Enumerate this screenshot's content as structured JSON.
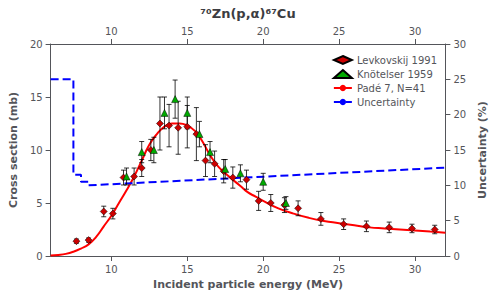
{
  "chart_data": {
    "type": "scatter",
    "title": "⁷⁰Zn(p,α)⁶⁷Cu",
    "x_label": "Incident particle energy (MeV)",
    "y_label": "Cross section (mb)",
    "y2_label": "Uncertainty (%)",
    "xlim": [
      6,
      32
    ],
    "xticks": [
      10,
      15,
      20,
      25,
      30
    ],
    "ylim": [
      0,
      20
    ],
    "yticks": [
      0,
      5,
      10,
      15,
      20
    ],
    "y2lim": [
      0,
      30
    ],
    "y2ticks": [
      0,
      5,
      10,
      15,
      20,
      25,
      30
    ],
    "grid": false,
    "legend": "upper right",
    "series": [
      {
        "name": "Levkovskij 1991",
        "type": "scatter",
        "marker": "diamond",
        "color": "#cc0000",
        "x": [
          7.7,
          8.5,
          9.5,
          10.1,
          10.8,
          11.5,
          12.0,
          12.6,
          13.2,
          13.8,
          14.4,
          15.0,
          15.6,
          16.2,
          16.8,
          17.4,
          18.0,
          18.9,
          19.7,
          20.5,
          21.4,
          22.3,
          23.8,
          25.3,
          26.8,
          28.3,
          29.8,
          31.3
        ],
        "values": [
          1.4,
          1.5,
          4.2,
          4.0,
          7.4,
          7.5,
          8.3,
          10.0,
          12.5,
          12.3,
          12.1,
          12.2,
          11.5,
          9.0,
          8.7,
          8.0,
          7.4,
          7.2,
          5.2,
          5.0,
          4.8,
          4.5,
          3.5,
          3.0,
          2.8,
          2.7,
          2.6,
          2.5
        ],
        "errors": [
          0.2,
          0.2,
          0.5,
          0.5,
          0.7,
          0.8,
          0.8,
          1.0,
          2.5,
          2.0,
          2.5,
          2.0,
          2.5,
          1.5,
          1.2,
          1.1,
          1.0,
          0.9,
          0.9,
          0.8,
          0.7,
          0.7,
          0.6,
          0.5,
          0.5,
          0.5,
          0.4,
          0.4
        ]
      },
      {
        "name": "Knötelser 1959",
        "type": "scatter",
        "marker": "triangle",
        "color": "#00aa00",
        "x": [
          11.0,
          12.0,
          12.8,
          13.5,
          14.2,
          15.0,
          15.8,
          16.5,
          17.5,
          18.5,
          20.0,
          21.5
        ],
        "values": [
          7.5,
          9.8,
          10.0,
          13.5,
          14.8,
          13.5,
          11.5,
          9.8,
          8.2,
          7.8,
          7.0,
          5.0
        ],
        "errors": [
          0.8,
          1.0,
          1.2,
          1.5,
          1.8,
          1.5,
          1.2,
          1.0,
          0.9,
          0.8,
          0.8,
          0.6
        ]
      },
      {
        "name": "Padé 7, N=41",
        "type": "line",
        "line_style": "solid",
        "color": "#ff0000",
        "x": [
          6.0,
          6.5,
          7.0,
          7.5,
          8.0,
          8.5,
          9.0,
          9.5,
          10.0,
          10.5,
          11.0,
          11.5,
          12.0,
          12.5,
          13.0,
          13.5,
          14.0,
          14.5,
          15.0,
          15.5,
          16.0,
          16.5,
          17.0,
          17.5,
          18.0,
          18.5,
          19.0,
          19.5,
          20.0,
          21.0,
          22.0,
          23.0,
          24.0,
          25.0,
          26.0,
          27.0,
          28.0,
          29.0,
          30.0,
          31.0,
          32.0
        ],
        "values": [
          0.05,
          0.1,
          0.2,
          0.4,
          0.7,
          1.1,
          1.8,
          2.8,
          3.8,
          5.0,
          6.2,
          7.5,
          9.0,
          10.5,
          11.5,
          12.2,
          12.5,
          12.5,
          12.3,
          11.8,
          10.8,
          9.5,
          8.5,
          7.8,
          7.2,
          6.6,
          6.0,
          5.6,
          5.2,
          4.5,
          4.0,
          3.6,
          3.3,
          3.1,
          2.9,
          2.7,
          2.6,
          2.5,
          2.4,
          2.3,
          2.2
        ]
      },
      {
        "name": "Uncertainty",
        "type": "line",
        "line_style": "dashed",
        "axis": "y2",
        "color": "#0000ff",
        "x": [
          6.0,
          7.5,
          7.5,
          8.0,
          8.0,
          8.5,
          8.5,
          32.0
        ],
        "values": [
          25.0,
          25.0,
          11.5,
          11.5,
          10.5,
          10.5,
          10.0,
          12.5
        ]
      }
    ]
  }
}
